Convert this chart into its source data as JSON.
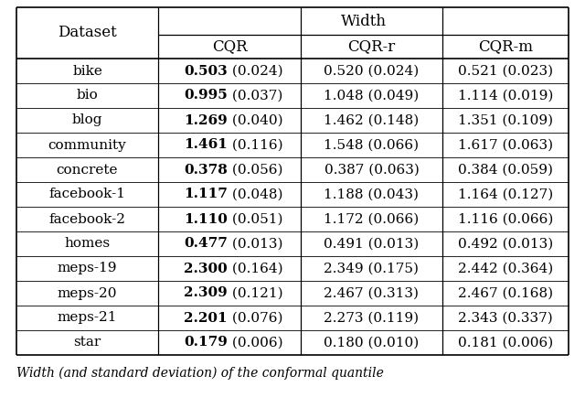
{
  "title": "Width",
  "col_headers": [
    "Dataset",
    "CQR",
    "CQR-r",
    "CQR-m"
  ],
  "rows": [
    {
      "dataset": "bike",
      "cqr": {
        "mean": "0.503",
        "std": "(0.024)",
        "bold": true
      },
      "cqr_r": {
        "mean": "0.520",
        "std": "(0.024)",
        "bold": false
      },
      "cqr_m": {
        "mean": "0.521",
        "std": "(0.023)",
        "bold": false
      }
    },
    {
      "dataset": "bio",
      "cqr": {
        "mean": "0.995",
        "std": "(0.037)",
        "bold": true
      },
      "cqr_r": {
        "mean": "1.048",
        "std": "(0.049)",
        "bold": false
      },
      "cqr_m": {
        "mean": "1.114",
        "std": "(0.019)",
        "bold": false
      }
    },
    {
      "dataset": "blog",
      "cqr": {
        "mean": "1.269",
        "std": "(0.040)",
        "bold": true
      },
      "cqr_r": {
        "mean": "1.462",
        "std": "(0.148)",
        "bold": false
      },
      "cqr_m": {
        "mean": "1.351",
        "std": "(0.109)",
        "bold": false
      }
    },
    {
      "dataset": "community",
      "cqr": {
        "mean": "1.461",
        "std": "(0.116)",
        "bold": true
      },
      "cqr_r": {
        "mean": "1.548",
        "std": "(0.066)",
        "bold": false
      },
      "cqr_m": {
        "mean": "1.617",
        "std": "(0.063)",
        "bold": false
      }
    },
    {
      "dataset": "concrete",
      "cqr": {
        "mean": "0.378",
        "std": "(0.056)",
        "bold": true
      },
      "cqr_r": {
        "mean": "0.387",
        "std": "(0.063)",
        "bold": false
      },
      "cqr_m": {
        "mean": "0.384",
        "std": "(0.059)",
        "bold": false
      }
    },
    {
      "dataset": "facebook-1",
      "cqr": {
        "mean": "1.117",
        "std": "(0.048)",
        "bold": true
      },
      "cqr_r": {
        "mean": "1.188",
        "std": "(0.043)",
        "bold": false
      },
      "cqr_m": {
        "mean": "1.164",
        "std": "(0.127)",
        "bold": false
      }
    },
    {
      "dataset": "facebook-2",
      "cqr": {
        "mean": "1.110",
        "std": "(0.051)",
        "bold": true
      },
      "cqr_r": {
        "mean": "1.172",
        "std": "(0.066)",
        "bold": false
      },
      "cqr_m": {
        "mean": "1.116",
        "std": "(0.066)",
        "bold": false
      }
    },
    {
      "dataset": "homes",
      "cqr": {
        "mean": "0.477",
        "std": "(0.013)",
        "bold": true
      },
      "cqr_r": {
        "mean": "0.491",
        "std": "(0.013)",
        "bold": false
      },
      "cqr_m": {
        "mean": "0.492",
        "std": "(0.013)",
        "bold": false
      }
    },
    {
      "dataset": "meps-19",
      "cqr": {
        "mean": "2.300",
        "std": "(0.164)",
        "bold": true
      },
      "cqr_r": {
        "mean": "2.349",
        "std": "(0.175)",
        "bold": false
      },
      "cqr_m": {
        "mean": "2.442",
        "std": "(0.364)",
        "bold": false
      }
    },
    {
      "dataset": "meps-20",
      "cqr": {
        "mean": "2.309",
        "std": "(0.121)",
        "bold": true
      },
      "cqr_r": {
        "mean": "2.467",
        "std": "(0.313)",
        "bold": false
      },
      "cqr_m": {
        "mean": "2.467",
        "std": "(0.168)",
        "bold": false
      }
    },
    {
      "dataset": "meps-21",
      "cqr": {
        "mean": "2.201",
        "std": "(0.076)",
        "bold": true
      },
      "cqr_r": {
        "mean": "2.273",
        "std": "(0.119)",
        "bold": false
      },
      "cqr_m": {
        "mean": "2.343",
        "std": "(0.337)",
        "bold": false
      }
    },
    {
      "dataset": "star",
      "cqr": {
        "mean": "0.179",
        "std": "(0.006)",
        "bold": true
      },
      "cqr_r": {
        "mean": "0.180",
        "std": "(0.010)",
        "bold": false
      },
      "cqr_m": {
        "mean": "0.181",
        "std": "(0.006)",
        "bold": false
      }
    }
  ],
  "caption": "Width (and standard deviation) of the conformal quantile",
  "bg_color": "#ffffff",
  "text_color": "#000000",
  "line_color": "#000000",
  "figsize": [
    6.4,
    4.58
  ],
  "dpi": 100
}
